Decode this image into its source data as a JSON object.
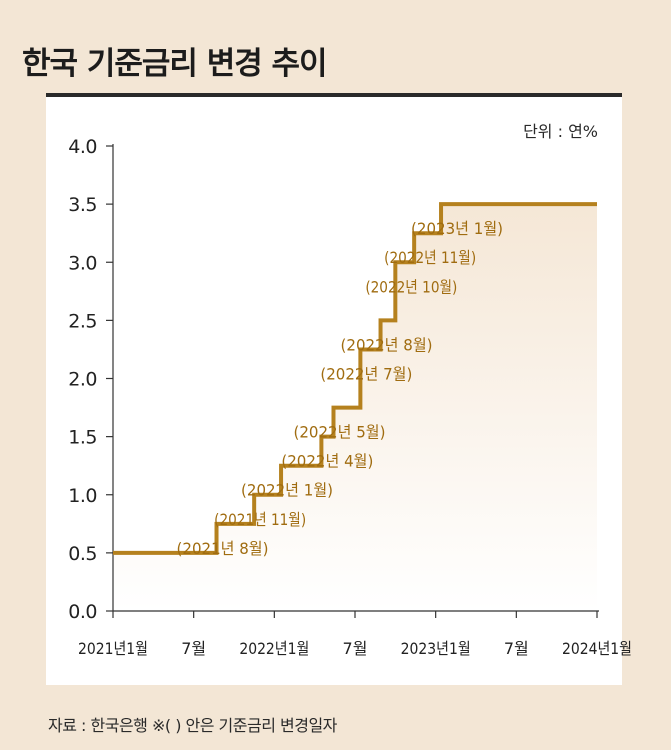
{
  "title": "한국 기준금리 변경 추이",
  "unit": "단위 : 연%",
  "source": "자료 : 한국은행 ※( ) 안은 기준금리 변경일자",
  "colors": {
    "line": "#b5811e",
    "label": "#a06c10",
    "fill_top": "#f6eadc",
    "axis": "#333333"
  },
  "chart_data": {
    "type": "line",
    "step": true,
    "ylim": [
      0,
      4.0
    ],
    "yticks": [
      "0.0",
      "0.5",
      "1.0",
      "1.5",
      "2.0",
      "2.5",
      "3.0",
      "3.5",
      "4.0"
    ],
    "xticks": [
      {
        "label": "2021년1월",
        "month": 0
      },
      {
        "label": "7월",
        "month": 6
      },
      {
        "label": "2022년1월",
        "month": 12
      },
      {
        "label": "7월",
        "month": 18
      },
      {
        "label": "2023년1월",
        "month": 24
      },
      {
        "label": "7월",
        "month": 30
      },
      {
        "label": "2024년1월",
        "month": 36
      }
    ],
    "series": [
      {
        "points": [
          {
            "month": 0,
            "rate": 0.5
          },
          {
            "month": 7.7,
            "rate": 0.75,
            "label": "(2021년 8월)"
          },
          {
            "month": 10.5,
            "rate": 1.0,
            "label": "(2021년 11월)"
          },
          {
            "month": 12.5,
            "rate": 1.25,
            "label": "(2022년 1월)"
          },
          {
            "month": 15.5,
            "rate": 1.5,
            "label": "(2022년 4월)"
          },
          {
            "month": 16.4,
            "rate": 1.75,
            "label": "(2022년 5월)"
          },
          {
            "month": 18.4,
            "rate": 2.25,
            "label": "(2022년 7월)"
          },
          {
            "month": 19.9,
            "rate": 2.5,
            "label": "(2022년 8월)"
          },
          {
            "month": 21.0,
            "rate": 3.0,
            "label": "(2022년 10월)"
          },
          {
            "month": 22.4,
            "rate": 3.25,
            "label": "(2022년 11월)"
          },
          {
            "month": 24.4,
            "rate": 3.5,
            "label": "(2023년 1월)"
          },
          {
            "month": 36,
            "rate": 3.5
          }
        ]
      }
    ]
  }
}
